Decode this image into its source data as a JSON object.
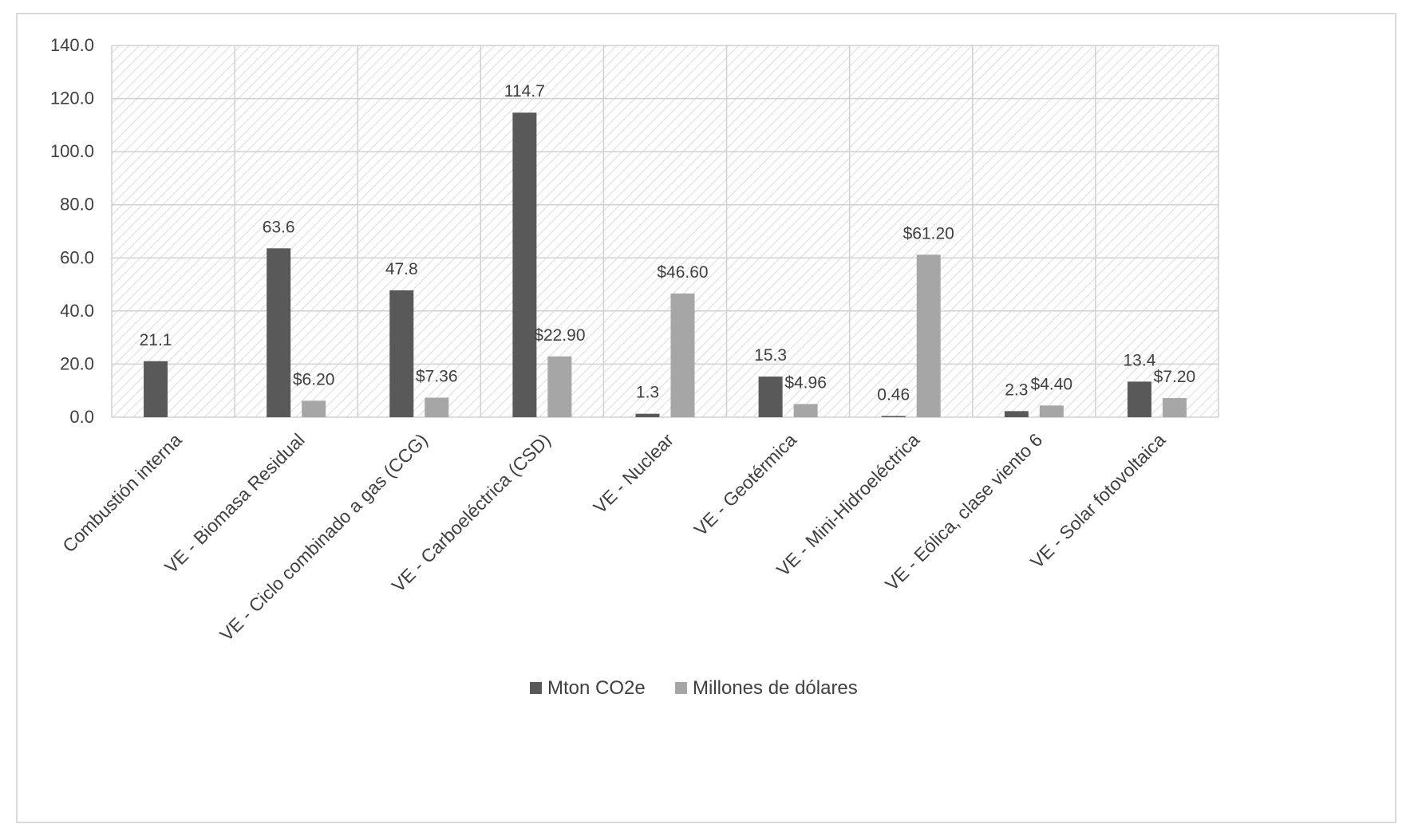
{
  "chart_data": {
    "type": "bar",
    "title": "",
    "xlabel": "",
    "ylabel": "",
    "ylim": [
      0,
      140
    ],
    "yticks": [
      0,
      20,
      40,
      60,
      80,
      100,
      120,
      140
    ],
    "ytick_labels": [
      "0.0",
      "20.0",
      "40.0",
      "60.0",
      "80.0",
      "100.0",
      "120.0",
      "140.0"
    ],
    "grid": true,
    "legend_position": "bottom-center",
    "categories": [
      "Combustión interna",
      "VE - Biomasa Residual",
      "VE - Ciclo combinado a gas (CCG)",
      "VE - Carboeléctrica (CSD)",
      "VE - Nuclear",
      "VE - Geotérmica",
      "VE - Mini-Hidroeléctrica",
      "VE - Eólica, clase viento 6",
      "VE - Solar fotovoltaica"
    ],
    "series": [
      {
        "name": "Mton CO2e",
        "color": "#595959",
        "values": [
          21.1,
          63.6,
          47.8,
          114.7,
          1.3,
          15.3,
          0.46,
          2.3,
          13.4
        ],
        "labels": [
          "21.1",
          "63.6",
          "47.8",
          "114.7",
          "1.3",
          "15.3",
          "0.46",
          "2.3",
          "13.4"
        ]
      },
      {
        "name": "Millones de dólares",
        "color": "#a6a6a6",
        "values": [
          null,
          6.2,
          7.36,
          22.9,
          46.6,
          4.96,
          61.2,
          4.4,
          7.2
        ],
        "labels": [
          null,
          "$6.20",
          "$7.36",
          "$22.90",
          "$46.60",
          "$4.96",
          "$61.20",
          "$4.40",
          "$7.20"
        ]
      }
    ]
  }
}
